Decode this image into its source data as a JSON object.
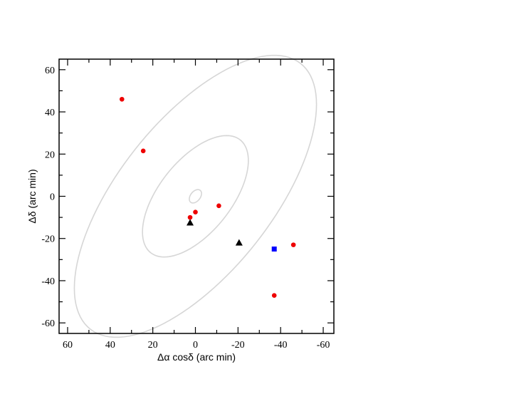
{
  "chart_data": {
    "type": "scatter",
    "title": "",
    "xlabel": "Δα  cosδ (arc min)",
    "ylabel": "Δδ (arc min)",
    "xlim": [
      64,
      -65
    ],
    "ylim": [
      -65,
      65
    ],
    "x_reversed": true,
    "grid": false,
    "x_ticks": [
      60,
      40,
      20,
      0,
      -20,
      -40,
      -60
    ],
    "x_tick_labels": [
      "60",
      "40",
      "20",
      "0",
      "-20",
      "-40",
      "-60"
    ],
    "y_ticks": [
      60,
      40,
      20,
      0,
      -20,
      -40,
      -60
    ],
    "y_tick_labels": [
      "60",
      "40",
      "20",
      "0",
      "-20",
      "-40",
      "-60"
    ],
    "ellipses": [
      {
        "cx": 0,
        "cy": 0,
        "a": 3.6,
        "b": 2.3,
        "angle_deg": -52
      },
      {
        "cx": 0,
        "cy": 0,
        "a": 34,
        "b": 17,
        "angle_deg": -52
      },
      {
        "cx": 0,
        "cy": 0,
        "a": 80,
        "b": 36,
        "angle_deg": -52
      }
    ],
    "series": [
      {
        "marker": "circle",
        "color": "#ee0000",
        "points": [
          [
            34.5,
            46
          ],
          [
            24.5,
            21.5
          ],
          [
            -11,
            -4.5
          ],
          [
            0,
            -7.5
          ],
          [
            2.5,
            -10
          ],
          [
            -46,
            -23
          ],
          [
            -37,
            -47
          ]
        ]
      },
      {
        "marker": "triangle",
        "color": "#000000",
        "points": [
          [
            2.5,
            -12.5
          ],
          [
            -20.5,
            -22
          ]
        ]
      },
      {
        "marker": "square",
        "color": "#0000ff",
        "points": [
          [
            -37,
            -25
          ]
        ]
      }
    ]
  },
  "colors": {
    "contour": "#d6d6d6",
    "axis": "#000000"
  }
}
